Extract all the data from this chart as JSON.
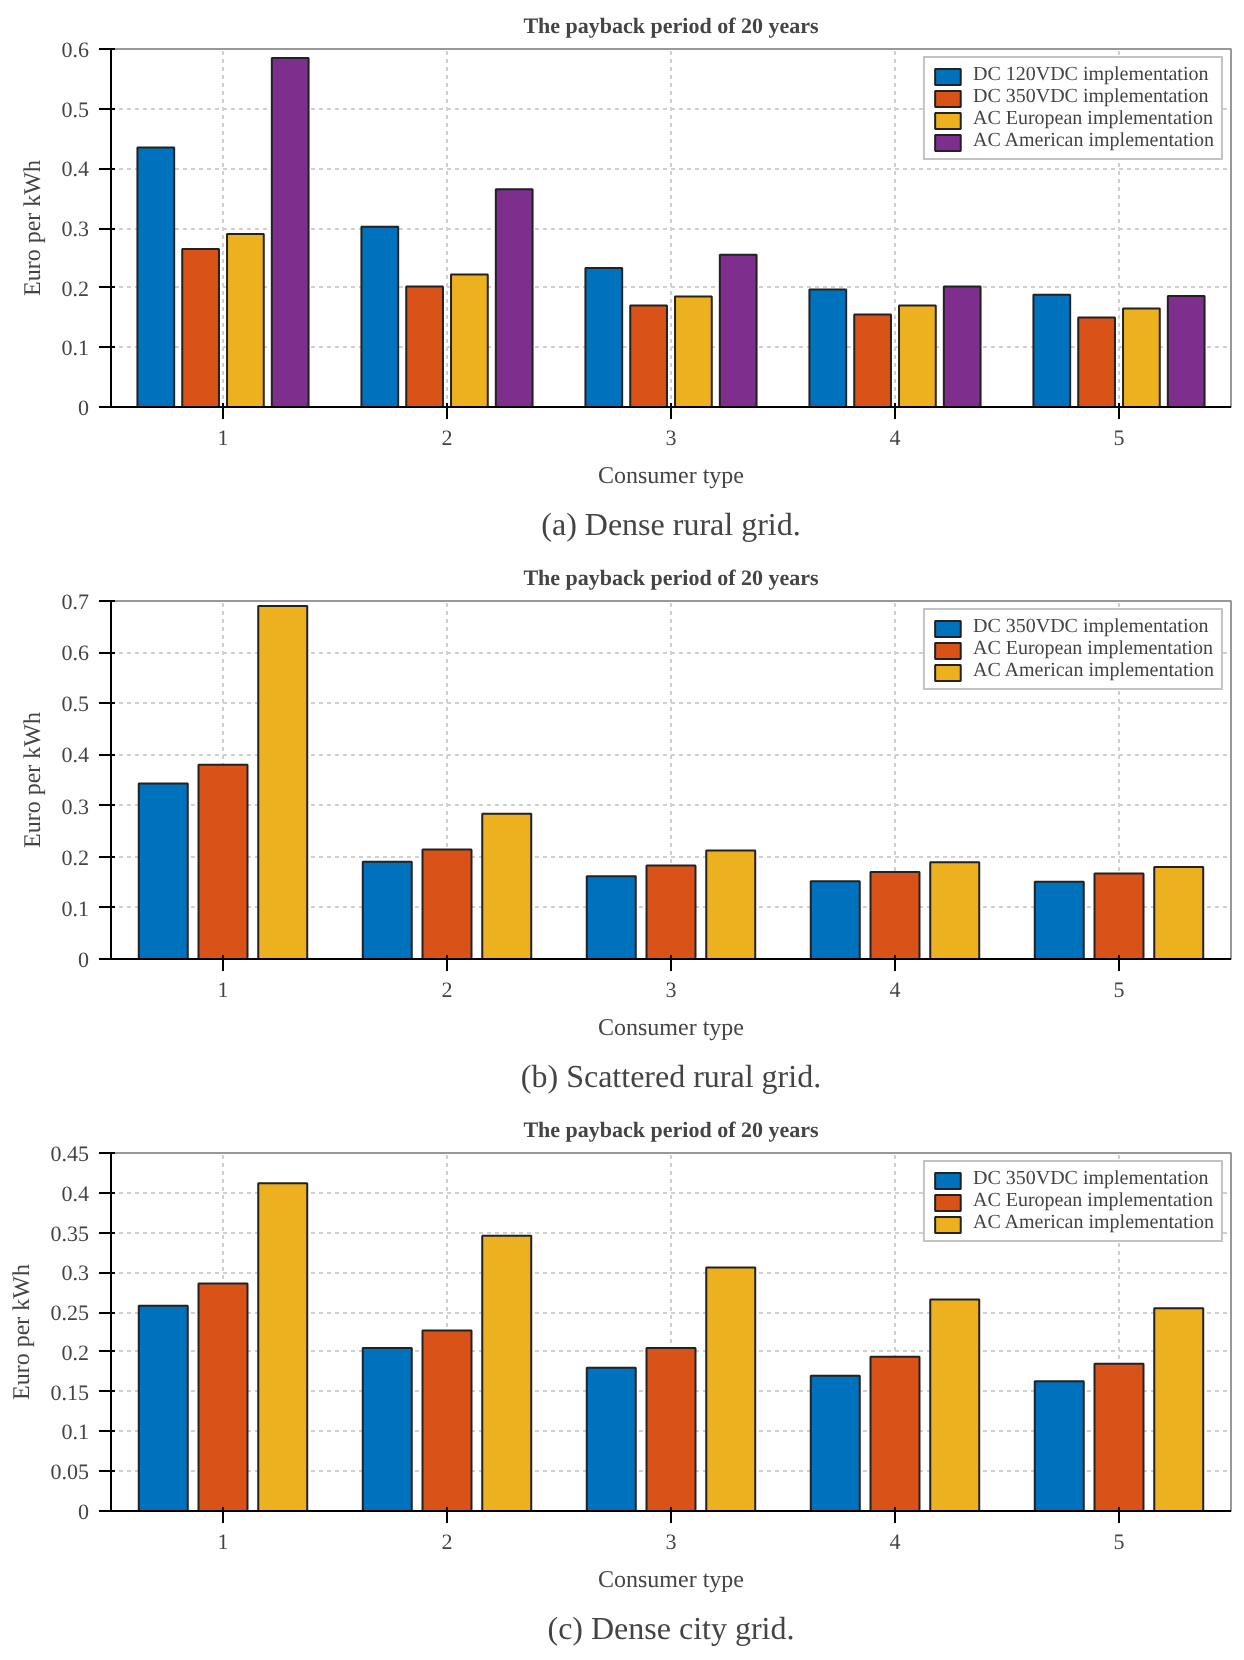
{
  "chart_data": [
    {
      "type": "bar",
      "title": "The payback period of 20 years",
      "xlabel": "Consumer type",
      "ylabel": "Euro per kWh",
      "categories": [
        "1",
        "2",
        "3",
        "4",
        "5"
      ],
      "ylim": [
        0,
        0.6
      ],
      "yticks": [
        0,
        0.1,
        0.2,
        0.3,
        0.4,
        0.5,
        0.6
      ],
      "grid": true,
      "legend": "top right",
      "annotations": [
        "(a) Dense rural grid."
      ],
      "series": [
        {
          "name": "DC 120VDC implementation",
          "color": "#0072bd",
          "values": [
            0.435,
            0.302,
            0.233,
            0.197,
            0.188
          ]
        },
        {
          "name": "DC 350VDC implementation",
          "color": "#d95319",
          "values": [
            0.265,
            0.202,
            0.17,
            0.155,
            0.15
          ]
        },
        {
          "name": "AC European implementation",
          "color": "#edb120",
          "values": [
            0.29,
            0.222,
            0.185,
            0.17,
            0.165
          ]
        },
        {
          "name": "AC American implementation",
          "color": "#7e2f8e",
          "values": [
            0.585,
            0.365,
            0.255,
            0.202,
            0.186
          ]
        }
      ]
    },
    {
      "type": "bar",
      "title": "The payback period of 20 years",
      "xlabel": "Consumer type",
      "ylabel": "Euro per kWh",
      "categories": [
        "1",
        "2",
        "3",
        "4",
        "5"
      ],
      "ylim": [
        0,
        0.7
      ],
      "yticks": [
        0,
        0.1,
        0.2,
        0.3,
        0.4,
        0.5,
        0.6,
        0.7
      ],
      "grid": true,
      "legend": "top right",
      "annotations": [
        "(b) Scattered rural grid."
      ],
      "series": [
        {
          "name": "DC 350VDC implementation",
          "color": "#0072bd",
          "values": [
            0.343,
            0.19,
            0.162,
            0.152,
            0.151
          ]
        },
        {
          "name": "AC European implementation",
          "color": "#d95319",
          "values": [
            0.38,
            0.214,
            0.183,
            0.17,
            0.167
          ]
        },
        {
          "name": "AC American implementation",
          "color": "#edb120",
          "values": [
            0.69,
            0.284,
            0.212,
            0.189,
            0.18
          ]
        }
      ]
    },
    {
      "type": "bar",
      "title": "The payback period of 20 years",
      "xlabel": "Consumer type",
      "ylabel": "Euro per kWh",
      "categories": [
        "1",
        "2",
        "3",
        "4",
        "5"
      ],
      "ylim": [
        0,
        0.45
      ],
      "yticks": [
        0,
        0.05,
        0.1,
        0.15,
        0.2,
        0.25,
        0.3,
        0.35,
        0.4,
        0.45
      ],
      "grid": true,
      "legend": "top right",
      "annotations": [
        "(c) Dense city grid."
      ],
      "series": [
        {
          "name": "DC 350VDC implementation",
          "color": "#0072bd",
          "values": [
            0.258,
            0.205,
            0.18,
            0.17,
            0.163
          ]
        },
        {
          "name": "AC European implementation",
          "color": "#d95319",
          "values": [
            0.286,
            0.227,
            0.205,
            0.194,
            0.185
          ]
        },
        {
          "name": "AC American implementation",
          "color": "#edb120",
          "values": [
            0.412,
            0.346,
            0.306,
            0.266,
            0.255
          ]
        }
      ]
    }
  ]
}
